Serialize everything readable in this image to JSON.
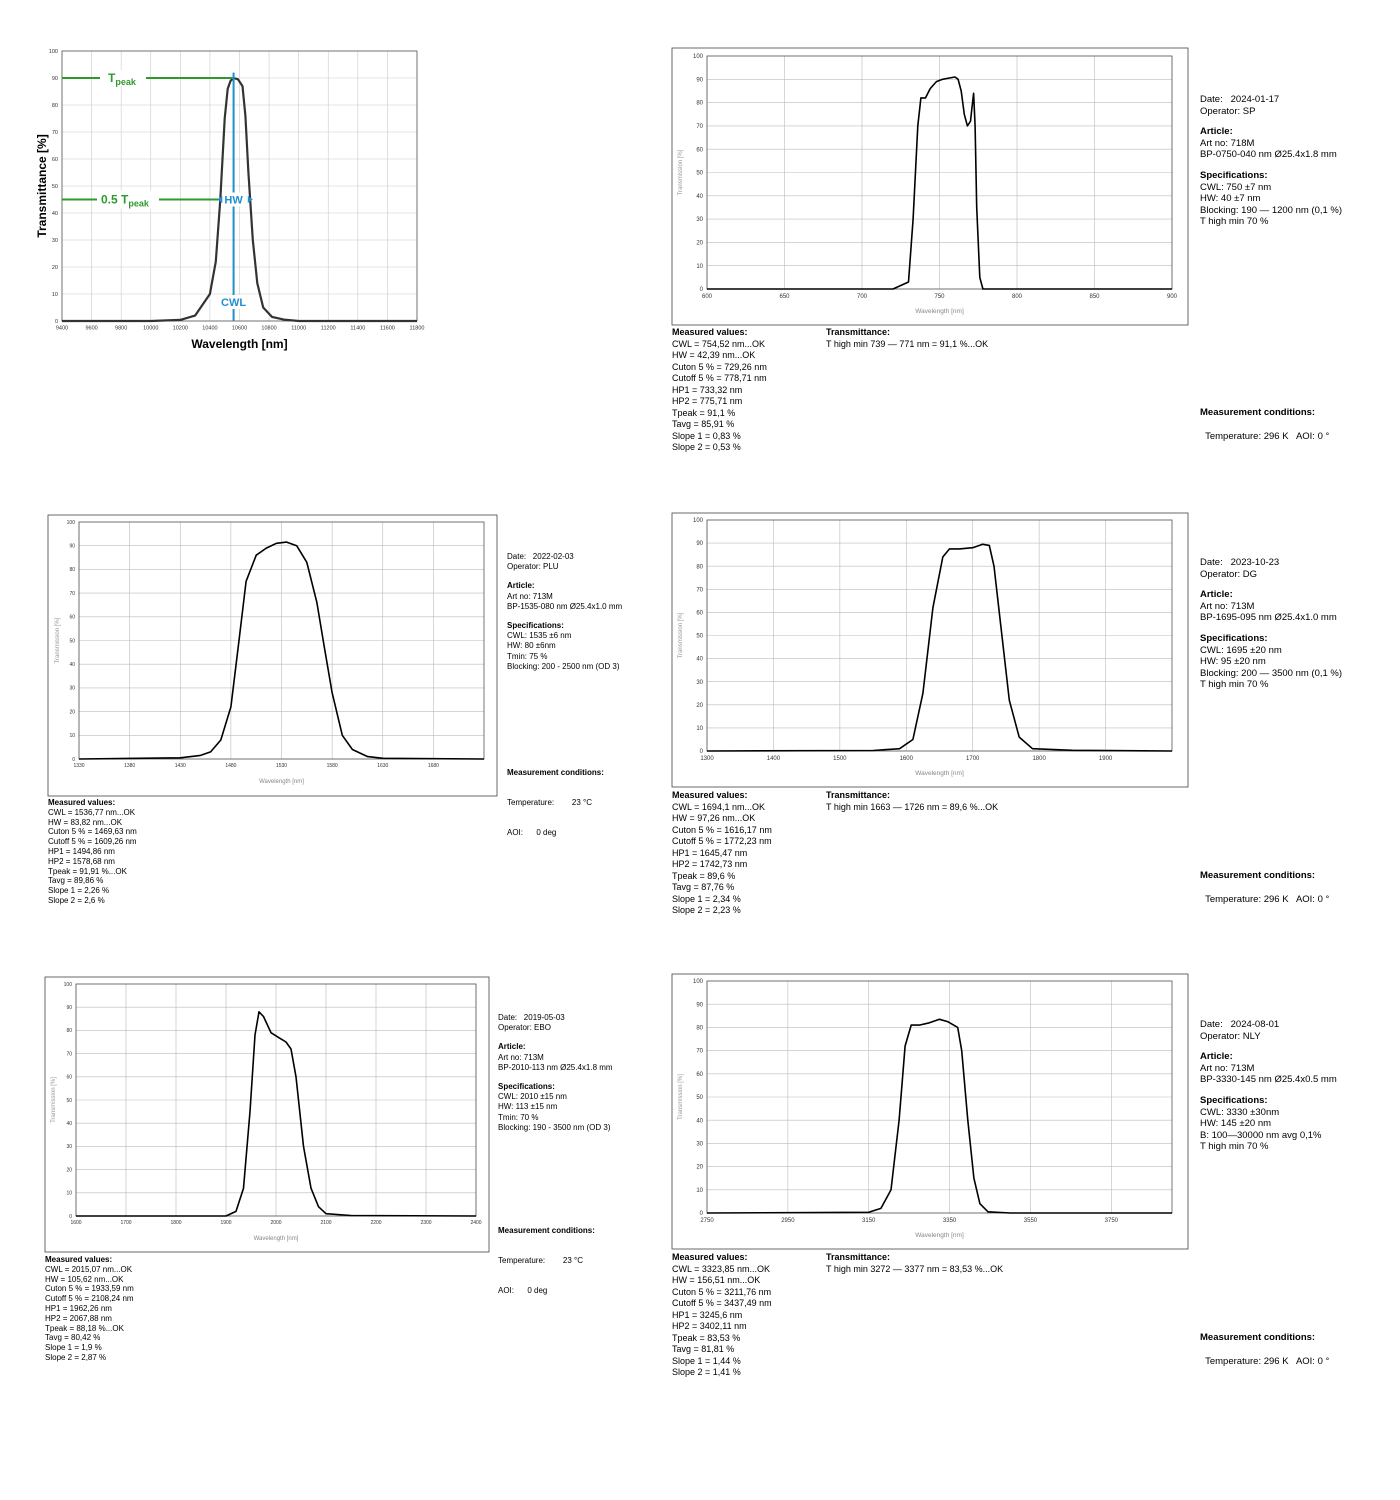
{
  "chart_data": [
    {
      "type": "line",
      "ylabel": "Transmittance [%]",
      "xlabel": "Wavelength [nm]",
      "xlim": [
        9400,
        11800
      ],
      "ylim": [
        0,
        100
      ],
      "xticks": [
        9400,
        9600,
        9800,
        10000,
        10200,
        10400,
        10600,
        10800,
        11000,
        11200,
        11400,
        11600,
        11800
      ],
      "yticks": [
        0,
        10,
        20,
        30,
        40,
        50,
        60,
        70,
        80,
        90,
        100
      ],
      "annotations": {
        "tpeak_label": "T",
        "tpeak_sub": "peak",
        "half_label": "0.5 T",
        "half_sub": "peak",
        "hw_label": "HW",
        "cwl_label": "CWL",
        "tpeak_value": 90,
        "half_value": 45,
        "cwl_value": 10560
      },
      "colors": {
        "annotation_green": "#2e9a2e",
        "annotation_blue": "#1f8fd0",
        "curve": "#333333"
      },
      "series": [
        {
          "x": [
            9400,
            9800,
            10000,
            10200,
            10300,
            10400,
            10440,
            10470,
            10500,
            10520,
            10540,
            10560,
            10590,
            10620,
            10640,
            10660,
            10690,
            10720,
            10760,
            10820,
            10900,
            11000,
            11200,
            11800
          ],
          "y": [
            0,
            0,
            0,
            0.4,
            2,
            10,
            22,
            45,
            75,
            86,
            89,
            90,
            89.5,
            87,
            76,
            55,
            30,
            14,
            5,
            1.5,
            0.5,
            0,
            0,
            0
          ]
        }
      ]
    },
    {
      "type": "line",
      "ylabel": "Transmission [%]",
      "xlabel": "Wavelength [nm]",
      "xlim": [
        600,
        900
      ],
      "ylim": [
        0,
        100
      ],
      "xticks": [
        600,
        650,
        700,
        750,
        800,
        850,
        900
      ],
      "yticks": [
        0,
        10,
        20,
        30,
        40,
        50,
        60,
        70,
        80,
        90,
        100
      ],
      "series": [
        {
          "x": [
            600,
            720,
            730,
            733,
            736,
            738,
            741,
            744,
            748,
            752,
            756,
            760,
            762,
            764,
            766,
            768,
            770,
            771,
            772,
            773,
            774,
            776,
            778,
            800,
            900
          ],
          "y": [
            0,
            0,
            3,
            30,
            70,
            82,
            82,
            86,
            89,
            90,
            90.5,
            91,
            90,
            85,
            75,
            70,
            72,
            78,
            84,
            70,
            35,
            5,
            0,
            0,
            0
          ]
        }
      ]
    },
    {
      "type": "line",
      "ylabel": "Transmission [%]",
      "xlabel": "Wavelength [nm]",
      "xlim": [
        1330,
        1730
      ],
      "ylim": [
        0,
        100
      ],
      "xticks": [
        1330,
        1380,
        1430,
        1480,
        1530,
        1580,
        1630,
        1680
      ],
      "yticks": [
        0,
        10,
        20,
        30,
        40,
        50,
        60,
        70,
        80,
        90,
        100
      ],
      "series": [
        {
          "x": [
            1330,
            1430,
            1450,
            1460,
            1470,
            1480,
            1488,
            1495,
            1505,
            1515,
            1525,
            1535,
            1545,
            1555,
            1565,
            1572,
            1580,
            1590,
            1600,
            1615,
            1630,
            1730
          ],
          "y": [
            0,
            0.5,
            1.5,
            3,
            8,
            22,
            50,
            75,
            86,
            89,
            91,
            91.5,
            90,
            83,
            66,
            48,
            28,
            10,
            4,
            1,
            0.3,
            0
          ]
        }
      ]
    },
    {
      "type": "line",
      "ylabel": "Transmission [%]",
      "xlabel": "Wavelength [nm]",
      "xlim": [
        1300,
        2000
      ],
      "ylim": [
        0,
        100
      ],
      "xticks": [
        1300,
        1400,
        1500,
        1600,
        1700,
        1800,
        1900
      ],
      "yticks": [
        0,
        10,
        20,
        30,
        40,
        50,
        60,
        70,
        80,
        90,
        100
      ],
      "series": [
        {
          "x": [
            1300,
            1550,
            1590,
            1610,
            1625,
            1640,
            1655,
            1665,
            1680,
            1700,
            1715,
            1725,
            1732,
            1742,
            1755,
            1770,
            1790,
            1850,
            2000
          ],
          "y": [
            0,
            0.2,
            1,
            5,
            25,
            62,
            84,
            87.5,
            87.5,
            88,
            89.5,
            89,
            80,
            55,
            22,
            6,
            1,
            0.3,
            0
          ]
        }
      ]
    },
    {
      "type": "line",
      "ylabel": "Transmission [%]",
      "xlabel": "Wavelength [nm]",
      "xlim": [
        1600,
        2400
      ],
      "ylim": [
        0,
        100
      ],
      "xticks": [
        1600,
        1700,
        1800,
        1900,
        2000,
        2100,
        2200,
        2300,
        2400
      ],
      "yticks": [
        0,
        10,
        20,
        30,
        40,
        50,
        60,
        70,
        80,
        90,
        100
      ],
      "series": [
        {
          "x": [
            1600,
            1900,
            1920,
            1935,
            1948,
            1958,
            1966,
            1975,
            1990,
            2005,
            2020,
            2030,
            2040,
            2055,
            2070,
            2085,
            2100,
            2150,
            2400
          ],
          "y": [
            0,
            0,
            2,
            12,
            45,
            78,
            88,
            86,
            79,
            77,
            75,
            72,
            60,
            30,
            12,
            4,
            1,
            0.2,
            0
          ]
        }
      ]
    },
    {
      "type": "line",
      "ylabel": "Transmission [%]",
      "xlabel": "Wavelength [nm]",
      "xlim": [
        2750,
        3900
      ],
      "ylim": [
        0,
        100
      ],
      "xticks": [
        2750,
        2950,
        3150,
        3350,
        3550,
        3750
      ],
      "yticks": [
        0,
        10,
        20,
        30,
        40,
        50,
        60,
        70,
        80,
        90,
        100
      ],
      "series": [
        {
          "x": [
            2750,
            3150,
            3180,
            3205,
            3225,
            3240,
            3255,
            3275,
            3300,
            3325,
            3345,
            3370,
            3380,
            3395,
            3410,
            3425,
            3445,
            3500,
            3900
          ],
          "y": [
            0,
            0.3,
            2,
            10,
            40,
            72,
            81,
            81,
            82,
            83.5,
            82.5,
            80,
            70,
            40,
            15,
            4,
            0.5,
            0,
            0
          ]
        }
      ]
    }
  ],
  "panels": {
    "p2": {
      "info": [
        {
          "t": "Date:   2024-01-17",
          "b": false
        },
        {
          "t": "Operator: SP",
          "b": false
        },
        {
          "t": "",
          "gap": true
        },
        {
          "t": "Article:",
          "b": true
        },
        {
          "t": "Art no: 718M",
          "b": false
        },
        {
          "t": "BP-0750-040 nm Ø25.4x1.8 mm",
          "b": false
        },
        {
          "t": "",
          "gap": true
        },
        {
          "t": "Specifications:",
          "b": true
        },
        {
          "t": "CWL: 750 ±7 nm",
          "b": false
        },
        {
          "t": "HW: 40 ±7 nm",
          "b": false
        },
        {
          "t": "Blocking: 190 — 1200 nm (0,1 %)",
          "b": false
        },
        {
          "t": "T high min 70 %",
          "b": false
        }
      ],
      "measured_title": "Measured values:",
      "measured": [
        "CWL = 754,52 nm...OK",
        "HW = 42,39 nm...OK",
        "Cuton 5 % = 729,26 nm",
        "Cutoff 5 % = 778,71 nm",
        "HP1 = 733,32 nm",
        "HP2 = 775,71 nm",
        "Tpeak = 91,1 %",
        "Tavg = 85,91 %",
        "Slope 1 = 0,83 %",
        "Slope 2 = 0,53 %"
      ],
      "trans_title": "Transmittance:",
      "trans": "T high min 739 — 771 nm = 91,1 %...OK",
      "cond_title": "Measurement conditions:",
      "cond": "Temperature: 296 K   AOI: 0 °"
    },
    "p3": {
      "info": [
        {
          "t": "Date:   2022-02-03",
          "b": false
        },
        {
          "t": "Operator: PLU",
          "b": false
        },
        {
          "t": "",
          "gap": true
        },
        {
          "t": "Article:",
          "b": true
        },
        {
          "t": "Art no: 713M",
          "b": false
        },
        {
          "t": "BP-1535-080 nm Ø25.4x1.0 mm",
          "b": false
        },
        {
          "t": "",
          "gap": true
        },
        {
          "t": "Specifications:",
          "b": true
        },
        {
          "t": "CWL: 1535 ±6 nm",
          "b": false
        },
        {
          "t": "HW: 80 ±6nm",
          "b": false
        },
        {
          "t": "Tmin: 75 %",
          "b": false
        },
        {
          "t": "Blocking: 200 - 2500 nm (OD 3)",
          "b": false
        }
      ],
      "measured_title": "Measured values:",
      "measured": [
        "CWL = 1536,77 nm...OK",
        "HW = 83,82 nm...OK",
        "Cuton 5 % = 1469,63 nm",
        "Cutoff 5 % = 1609,26 nm",
        "HP1 = 1494,86 nm",
        "HP2 = 1578,68 nm",
        "Tpeak = 91,91 %...OK",
        "Tavg = 89,86 %",
        "Slope 1 = 2,26 %",
        "Slope 2 = 2,6 %"
      ],
      "cond_title": "Measurement conditions:",
      "cond1": "Temperature:        23 °C",
      "cond2": "AOI:      0 deg"
    },
    "p4": {
      "info": [
        {
          "t": "Date:   2023-10-23",
          "b": false
        },
        {
          "t": "Operator: DG",
          "b": false
        },
        {
          "t": "",
          "gap": true
        },
        {
          "t": "Article:",
          "b": true
        },
        {
          "t": "Art no: 713M",
          "b": false
        },
        {
          "t": "BP-1695-095 nm Ø25.4x1.0 mm",
          "b": false
        },
        {
          "t": "",
          "gap": true
        },
        {
          "t": "Specifications:",
          "b": true
        },
        {
          "t": "CWL: 1695 ±20 nm",
          "b": false
        },
        {
          "t": "HW: 95 ±20 nm",
          "b": false
        },
        {
          "t": "Blocking: 200 — 3500 nm (0,1 %)",
          "b": false
        },
        {
          "t": "T high min 70 %",
          "b": false
        }
      ],
      "measured_title": "Measured values:",
      "measured": [
        "CWL = 1694,1 nm...OK",
        "HW = 97,26 nm...OK",
        "Cuton 5 % = 1616,17 nm",
        "Cutoff 5 % = 1772,23 nm",
        "HP1 = 1645,47 nm",
        "HP2 = 1742,73 nm",
        "Tpeak = 89,6 %",
        "Tavg = 87,76 %",
        "Slope 1 = 2,34 %",
        "Slope 2 = 2,23 %"
      ],
      "trans_title": "Transmittance:",
      "trans": "T high min 1663 — 1726 nm = 89,6 %...OK",
      "cond_title": "Measurement conditions:",
      "cond": "Temperature: 296 K   AOI: 0 °"
    },
    "p5": {
      "info": [
        {
          "t": "Date:   2019-05-03",
          "b": false
        },
        {
          "t": "Operator: EBO",
          "b": false
        },
        {
          "t": "",
          "gap": true
        },
        {
          "t": "Article:",
          "b": true
        },
        {
          "t": "Art no: 713M",
          "b": false
        },
        {
          "t": "BP-2010-113 nm Ø25.4x1.8 mm",
          "b": false
        },
        {
          "t": "",
          "gap": true
        },
        {
          "t": "Specifications:",
          "b": true
        },
        {
          "t": "CWL: 2010 ±15 nm",
          "b": false
        },
        {
          "t": "HW: 113 ±15 nm",
          "b": false
        },
        {
          "t": "Tmin: 70 %",
          "b": false
        },
        {
          "t": "Blocking: 190 - 3500 nm (OD 3)",
          "b": false
        }
      ],
      "measured_title": "Measured values:",
      "measured": [
        "CWL = 2015,07 nm...OK",
        "HW = 105,62 nm...OK",
        "Cuton 5 % = 1933,59 nm",
        "Cutoff 5 % = 2108,24 nm",
        "HP1 = 1962,26 nm",
        "HP2 = 2067,88 nm",
        "Tpeak = 88,18 %...OK",
        "Tavg = 80,42 %",
        "Slope 1 = 1,9 %",
        "Slope 2 = 2,87 %"
      ],
      "cond_title": "Measurement conditions:",
      "cond1": "Temperature:        23 °C",
      "cond2": "AOI:      0 deg"
    },
    "p6": {
      "info": [
        {
          "t": "Date:   2024-08-01",
          "b": false
        },
        {
          "t": "Operator: NLY",
          "b": false
        },
        {
          "t": "",
          "gap": true
        },
        {
          "t": "Article:",
          "b": true
        },
        {
          "t": "Art no: 713M",
          "b": false
        },
        {
          "t": "BP-3330-145 nm Ø25.4x0.5 mm",
          "b": false
        },
        {
          "t": "",
          "gap": true
        },
        {
          "t": "Specifications:",
          "b": true
        },
        {
          "t": "CWL: 3330 ±30nm",
          "b": false
        },
        {
          "t": "HW: 145 ±20 nm",
          "b": false
        },
        {
          "t": "B: 100—30000 nm avg 0,1%",
          "b": false
        },
        {
          "t": "T high min 70 %",
          "b": false
        }
      ],
      "measured_title": "Measured values:",
      "measured": [
        "CWL = 3323,85 nm...OK",
        "HW = 156,51 nm...OK",
        "Cuton 5 % = 3211,76 nm",
        "Cutoff 5 % = 3437,49 nm",
        "HP1 = 3245,6 nm",
        "HP2 = 3402,11 nm",
        "Tpeak = 83,53 %",
        "Tavg = 81,81 %",
        "Slope 1 = 1,44 %",
        "Slope 2 = 1,41 %"
      ],
      "trans_title": "Transmittance:",
      "trans": "T high min 3272 — 3377 nm = 83,53 %...OK",
      "cond_title": "Measurement conditions:",
      "cond": "Temperature: 296 K   AOI: 0 °"
    }
  }
}
